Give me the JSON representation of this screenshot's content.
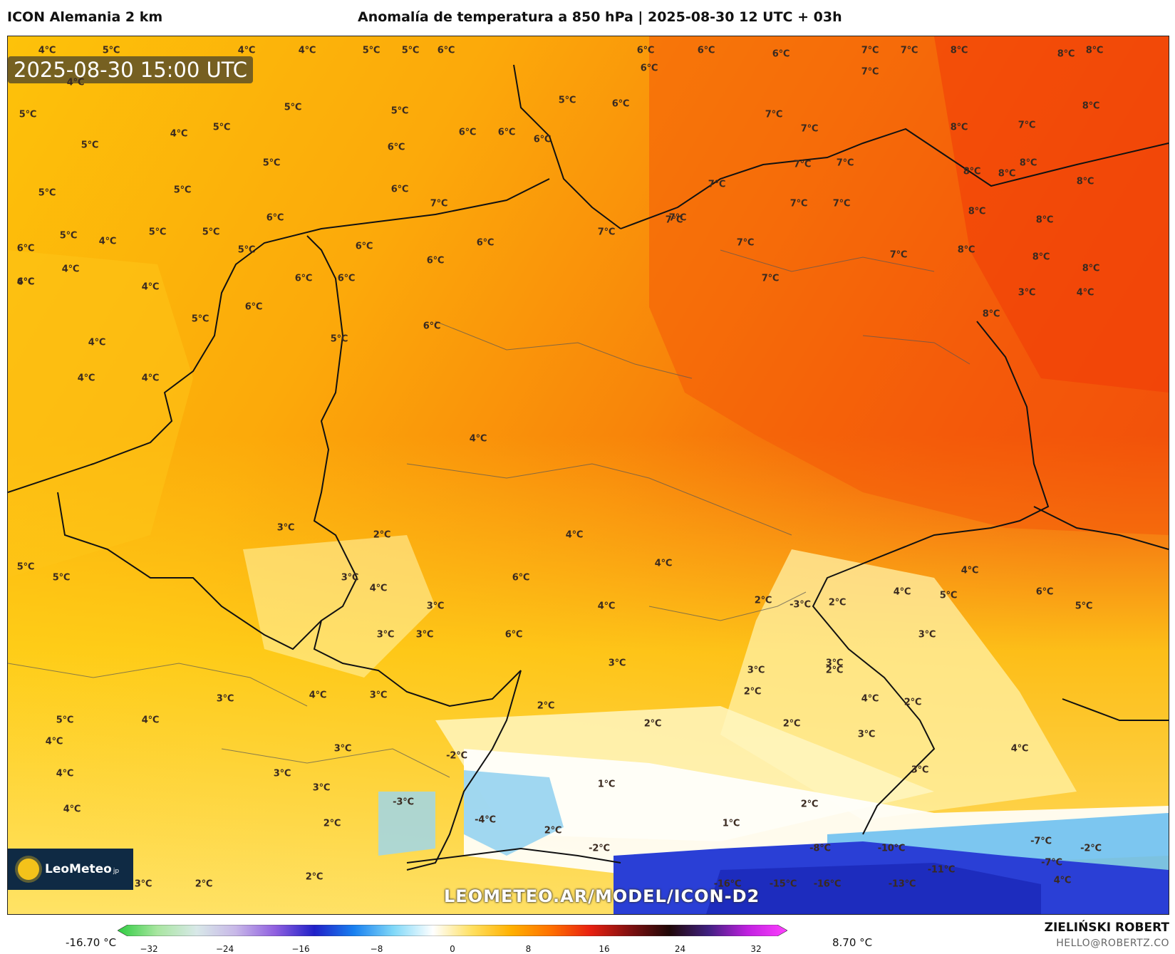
{
  "header": {
    "model": "ICON Alemania 2 km",
    "title": "Anomalía de temperatura a 850 hPa | 2025-08-30 12 UTC + 03h"
  },
  "map": {
    "timestamp": "2025-08-30 15:00 UTC",
    "watermark": "LEOMETEO.AR/MODEL/ICON-D2",
    "logo": {
      "name": "LeoMeteo",
      "suffix": "jp",
      "icon": "sun-icon"
    },
    "colors": {
      "cold_blue": "#2a3fd6",
      "light_blue": "#8fd0f0",
      "white": "#ffffff",
      "pale_yellow": "#fff4a8",
      "yellow": "#ffd21a",
      "yellow_orange": "#fdb80c",
      "orange": "#fb9a08",
      "red_orange": "#f45a0a"
    },
    "labels": [
      "4°C",
      "5°C",
      "4°C",
      "4°C",
      "4°C",
      "5°C",
      "5°C",
      "6°C",
      "6°C",
      "6°C",
      "7°C",
      "7°C",
      "8°C",
      "8°C",
      "8°C",
      "5°C",
      "5°C",
      "5°C",
      "5°C",
      "6°C",
      "6°C",
      "6°C",
      "7°C",
      "7°C",
      "8°C",
      "5°C",
      "4°C",
      "5°C",
      "5°C",
      "6°C",
      "7°C",
      "7°C",
      "8°C",
      "8°C",
      "5°C",
      "5°C",
      "6°C",
      "6°C",
      "6°C",
      "7°C",
      "7°C",
      "8°C",
      "4°C",
      "6°C",
      "6°C",
      "6°C",
      "7°C",
      "7°C",
      "7°C",
      "8°C",
      "8°C",
      "5°C",
      "4°C",
      "6°C",
      "7°C",
      "7°C",
      "8°C",
      "8°C",
      "4°C",
      "4°C",
      "5°C",
      "6°C",
      "6°C",
      "7°C",
      "7°C",
      "8°C",
      "4°C",
      "5°C",
      "6°C",
      "5°C",
      "6°C",
      "7°C",
      "8°C",
      "6°C",
      "5°C",
      "6°C",
      "5°C",
      "6°C",
      "7°C",
      "8°C",
      "4°C",
      "4°C",
      "3°C",
      "2°C",
      "6°C",
      "4°C",
      "4°C",
      "3°C",
      "4°C",
      "7°C",
      "8°C",
      "5°C",
      "3°C",
      "4°C",
      "3°C",
      "4°C",
      "4°C",
      "2°C",
      "-3°C",
      "2°C",
      "4°C",
      "6°C",
      "5°C",
      "5°C",
      "3°C",
      "3°C",
      "6°C",
      "3°C",
      "3°C",
      "2°C",
      "3°C",
      "4°C",
      "4°C",
      "4°C",
      "3°C",
      "3°C",
      "3°C",
      "4°C",
      "2°C",
      "-2°C",
      "5°C",
      "5°C",
      "4°C",
      "3°C",
      "2°C",
      "2°C",
      "2°C",
      "2°C",
      "3°C",
      "4°C",
      "4°C",
      "3°C",
      "3°C",
      "-3°C",
      "-4°C",
      "1°C",
      "2°C",
      "3°C",
      "4°C",
      "2°C",
      "1°C",
      "2°C",
      "-2°C",
      "-8°C",
      "-10°C",
      "-7°C",
      "-2°C",
      "4°C",
      "3°C",
      "2°C",
      "2°C",
      "-16°C",
      "-15°C",
      "-16°C",
      "-13°C",
      "-11°C",
      "-7°C",
      "4°C"
    ]
  },
  "colorbar": {
    "min_label": "-16.70 °C",
    "max_label": "8.70 °C",
    "ticks": [
      "−32",
      "−24",
      "−16",
      "−8",
      "0",
      "8",
      "16",
      "24",
      "32"
    ],
    "stops": [
      "#2ecc40",
      "#a8e6a0",
      "#d8e8e8",
      "#c8b8e8",
      "#9060e0",
      "#2020c8",
      "#1880f0",
      "#80d8f8",
      "#ffffff",
      "#ffe060",
      "#ffb000",
      "#ff7000",
      "#e82010",
      "#801010",
      "#200808",
      "#402080",
      "#c020e0",
      "#ff40ff"
    ]
  },
  "credits": {
    "author": "ZIELIŃSKI ROBERT",
    "email": "HELLO@ROBERTZ.CO"
  }
}
